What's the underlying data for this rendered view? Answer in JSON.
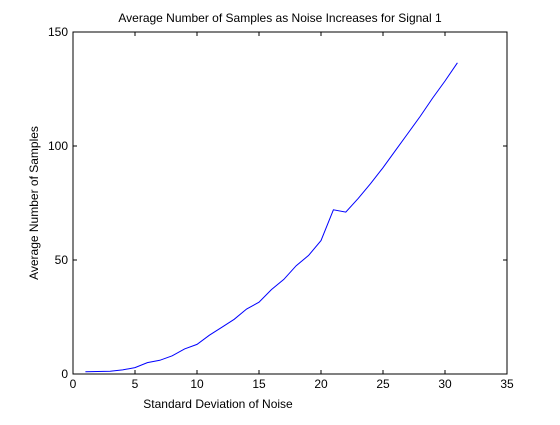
{
  "chart_data": {
    "type": "line",
    "title": "Average Number of Samples as Noise Increases for Signal 1",
    "xlabel": "Standard Deviation of Noise",
    "ylabel": "Average Number of Samples",
    "xlim": [
      0,
      35
    ],
    "ylim": [
      0,
      150
    ],
    "xticks": [
      0,
      5,
      10,
      15,
      20,
      25,
      30,
      35
    ],
    "yticks": [
      0,
      50,
      100,
      150
    ],
    "grid": false,
    "legend": "none",
    "colors": {
      "line": "#0000ff",
      "axes": "#000000",
      "background": "#ffffff"
    },
    "series": [
      {
        "x": [
          1,
          2,
          3,
          4,
          5,
          6,
          7,
          8,
          9,
          10,
          11,
          12,
          13,
          14,
          15,
          16,
          17,
          18,
          19,
          20,
          21,
          22,
          23,
          24,
          25,
          26,
          27,
          28,
          29,
          30,
          31
        ],
        "values": [
          1.0,
          1.1,
          1.2,
          1.8,
          2.8,
          5.0,
          6.0,
          8.0,
          11.0,
          13.0,
          17.0,
          20.5,
          24.0,
          28.5,
          31.5,
          37.0,
          41.5,
          47.5,
          52.0,
          58.5,
          72.0,
          71.0,
          77.0,
          83.5,
          90.5,
          98.0,
          105.5,
          113.0,
          121.0,
          128.5,
          136.5
        ]
      }
    ]
  }
}
